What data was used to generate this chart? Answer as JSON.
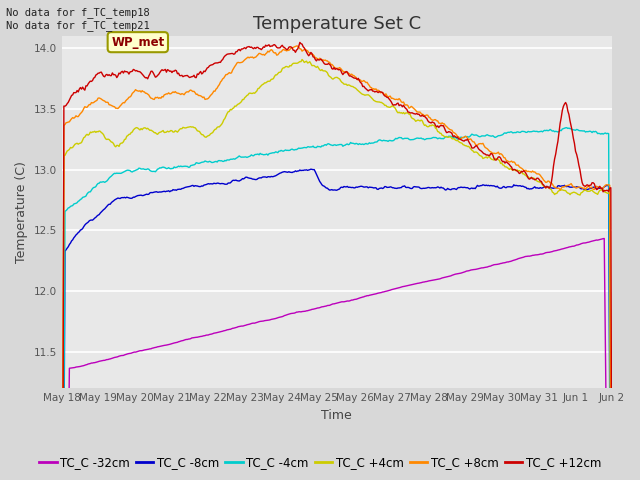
{
  "title": "Temperature Set C",
  "xlabel": "Time",
  "ylabel": "Temperature (C)",
  "ylim": [
    11.2,
    14.1
  ],
  "background_color": "#d8d8d8",
  "plot_bg_color": "#e8e8e8",
  "annotation_text": "No data for f_TC_temp18\nNo data for f_TC_temp21",
  "wp_met_label": "WP_met",
  "legend_entries": [
    "TC_C -32cm",
    "TC_C -8cm",
    "TC_C -4cm",
    "TC_C +4cm",
    "TC_C +8cm",
    "TC_C +12cm"
  ],
  "line_colors": [
    "#bb00bb",
    "#0000cc",
    "#00cccc",
    "#cccc00",
    "#ff8800",
    "#cc0000"
  ],
  "x_tick_labels": [
    "May 18",
    "May 19",
    "May 20",
    "May 21",
    "May 22",
    "May 23",
    "May 24",
    "May 25",
    "May 26",
    "May 27",
    "May 28",
    "May 29",
    "May 30",
    "May 31",
    "Jun 1",
    "Jun 2"
  ],
  "n_points": 500,
  "grid_color": "#ffffff",
  "title_fontsize": 13,
  "axis_fontsize": 9,
  "tick_fontsize": 7.5,
  "legend_fontsize": 8.5
}
